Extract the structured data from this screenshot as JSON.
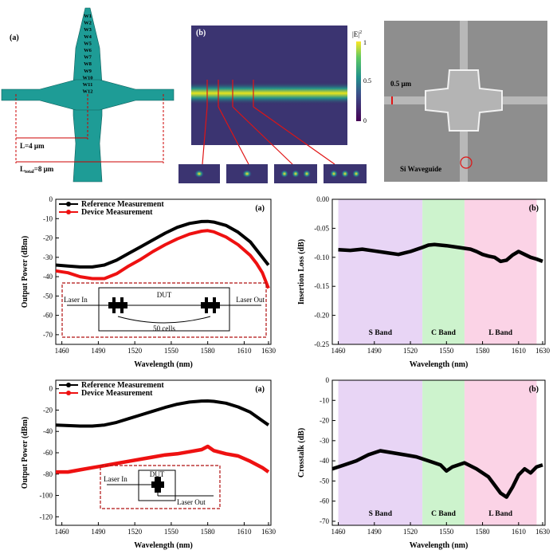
{
  "top": {
    "layout": {
      "label": "(a)",
      "cells": [
        "W1",
        "W2",
        "W3",
        "W4",
        "W5",
        "W6",
        "W7",
        "W8",
        "W9",
        "W10",
        "W11",
        "W12"
      ],
      "dim_L": "L=4 µm",
      "dim_total_prefix": "L",
      "dim_total_sub": "total",
      "dim_total_suffix": "=8 µm"
    },
    "field": {
      "label": "(b)",
      "colorbar_title": "|E|",
      "colorbar_sup": "2",
      "colorbar_ticks": [
        "1",
        "0.5",
        "0"
      ]
    },
    "sem": {
      "width_label": "0.5 µm",
      "waveguide_label": "Si Waveguide"
    }
  },
  "chart_data": [
    {
      "id": "insertion-power",
      "type": "line",
      "panel_label": "(a)",
      "xlabel": "Wavelength (nm)",
      "ylabel": "Output Power (dBm)",
      "xlim": [
        1455,
        1632
      ],
      "ylim": [
        -75,
        0
      ],
      "xticks": [
        1460,
        1490,
        1520,
        1550,
        1580,
        1610,
        1630
      ],
      "yticks": [
        0,
        -10,
        -20,
        -30,
        -40,
        -50,
        -60,
        -70
      ],
      "legend": [
        "Reference Measurement",
        "Device Measurement"
      ],
      "legend_position": "top-left",
      "x": [
        1455,
        1465,
        1475,
        1485,
        1495,
        1505,
        1515,
        1525,
        1535,
        1545,
        1555,
        1565,
        1575,
        1580,
        1585,
        1595,
        1605,
        1615,
        1620,
        1625,
        1630
      ],
      "series": [
        {
          "name": "Reference Measurement",
          "color": "#000000",
          "values": [
            -34,
            -34.5,
            -35,
            -35,
            -34,
            -31.5,
            -28,
            -24.5,
            -21,
            -17.5,
            -14.5,
            -12.5,
            -11.5,
            -11.4,
            -11.8,
            -13.5,
            -17,
            -22,
            -26,
            -30,
            -34
          ]
        },
        {
          "name": "Device Measurement",
          "color": "#ee1111",
          "values": [
            -37,
            -38,
            -40,
            -41,
            -41,
            -38.5,
            -34.5,
            -31,
            -27,
            -23.5,
            -20.5,
            -18,
            -16.5,
            -16.2,
            -16.8,
            -19.5,
            -23.5,
            -29,
            -33,
            -38,
            -46
          ]
        }
      ],
      "inset": {
        "laser_in": "Laser In",
        "laser_out": "Laser Out",
        "dut": "DUT",
        "cells": "50 cells"
      }
    },
    {
      "id": "insertion-loss",
      "type": "line",
      "panel_label": "(b)",
      "xlabel": "Wavelength (nm)",
      "ylabel": "Insertion Loss (dB)",
      "xlim": [
        1455,
        1632
      ],
      "ylim": [
        -0.25,
        0.0
      ],
      "xticks": [
        1460,
        1490,
        1520,
        1550,
        1580,
        1610,
        1630
      ],
      "yticks": [
        0.0,
        -0.05,
        -0.1,
        -0.15,
        -0.2,
        -0.25
      ],
      "bands": [
        {
          "name": "S Band",
          "from": 1460,
          "to": 1530,
          "color": "#e8d5f5"
        },
        {
          "name": "C Band",
          "from": 1530,
          "to": 1565,
          "color": "#cdf3cd"
        },
        {
          "name": "L Band",
          "from": 1565,
          "to": 1625,
          "color": "#fbd3e6"
        }
      ],
      "x": [
        1460,
        1470,
        1480,
        1490,
        1500,
        1510,
        1520,
        1530,
        1535,
        1540,
        1550,
        1560,
        1570,
        1575,
        1580,
        1585,
        1590,
        1595,
        1600,
        1605,
        1610,
        1615,
        1620,
        1625,
        1630
      ],
      "series": [
        {
          "name": "",
          "color": "#000000",
          "values": [
            -0.087,
            -0.088,
            -0.086,
            -0.089,
            -0.092,
            -0.095,
            -0.09,
            -0.083,
            -0.079,
            -0.078,
            -0.08,
            -0.083,
            -0.086,
            -0.09,
            -0.095,
            -0.098,
            -0.1,
            -0.107,
            -0.105,
            -0.096,
            -0.09,
            -0.095,
            -0.1,
            -0.103,
            -0.107
          ]
        }
      ]
    },
    {
      "id": "crosstalk-power",
      "type": "line",
      "panel_label": "(a)",
      "xlabel": "Wavelength (nm)",
      "ylabel": "Output Power (dBm)",
      "xlim": [
        1455,
        1632
      ],
      "ylim": [
        -128,
        8
      ],
      "xticks": [
        1460,
        1490,
        1520,
        1550,
        1580,
        1610,
        1630
      ],
      "yticks": [
        0,
        -20,
        -40,
        -60,
        -80,
        -100,
        -120
      ],
      "legend": [
        "Reference Measurement",
        "Device Measurement"
      ],
      "legend_position": "top-left",
      "x": [
        1455,
        1465,
        1475,
        1485,
        1495,
        1505,
        1515,
        1525,
        1535,
        1545,
        1555,
        1565,
        1575,
        1580,
        1585,
        1595,
        1605,
        1615,
        1620,
        1625,
        1630
      ],
      "series": [
        {
          "name": "Reference Measurement",
          "color": "#000000",
          "values": [
            -34,
            -34.5,
            -35,
            -35,
            -34,
            -31.5,
            -28,
            -24.5,
            -21,
            -17.5,
            -14.5,
            -12.5,
            -11.5,
            -11.4,
            -11.8,
            -13.5,
            -17,
            -22,
            -26,
            -30,
            -34
          ]
        },
        {
          "name": "Device Measurement",
          "color": "#ee1111",
          "values": [
            -78,
            -78,
            -76,
            -74,
            -72,
            -70,
            -68,
            -66,
            -64,
            -62,
            -61,
            -59,
            -57,
            -54,
            -58,
            -61,
            -63,
            -68,
            -71,
            -74,
            -78
          ]
        }
      ],
      "inset": {
        "laser_in": "Laser In",
        "laser_out": "Laser Out",
        "dut": "DUT"
      }
    },
    {
      "id": "crosstalk",
      "type": "line",
      "panel_label": "(b)",
      "xlabel": "Wavelength (nm)",
      "ylabel": "Crosstalk (dB)",
      "xlim": [
        1455,
        1632
      ],
      "ylim": [
        -72,
        0
      ],
      "xticks": [
        1460,
        1490,
        1520,
        1550,
        1580,
        1610,
        1630
      ],
      "yticks": [
        0,
        -10,
        -20,
        -30,
        -40,
        -50,
        -60,
        -70
      ],
      "bands": [
        {
          "name": "S Band",
          "from": 1460,
          "to": 1530,
          "color": "#e8d5f5"
        },
        {
          "name": "C Band",
          "from": 1530,
          "to": 1565,
          "color": "#cdf3cd"
        },
        {
          "name": "L Band",
          "from": 1565,
          "to": 1625,
          "color": "#fbd3e6"
        }
      ],
      "x": [
        1455,
        1465,
        1475,
        1485,
        1495,
        1505,
        1515,
        1525,
        1535,
        1545,
        1550,
        1555,
        1565,
        1575,
        1585,
        1590,
        1595,
        1600,
        1605,
        1610,
        1615,
        1620,
        1625,
        1630
      ],
      "series": [
        {
          "name": "",
          "color": "#000000",
          "values": [
            -44,
            -42,
            -40,
            -37,
            -35,
            -36,
            -37,
            -38,
            -40,
            -42,
            -45,
            -43,
            -41,
            -44,
            -48,
            -52,
            -56,
            -58,
            -53,
            -47,
            -44,
            -46,
            -43,
            -42
          ]
        }
      ]
    }
  ]
}
